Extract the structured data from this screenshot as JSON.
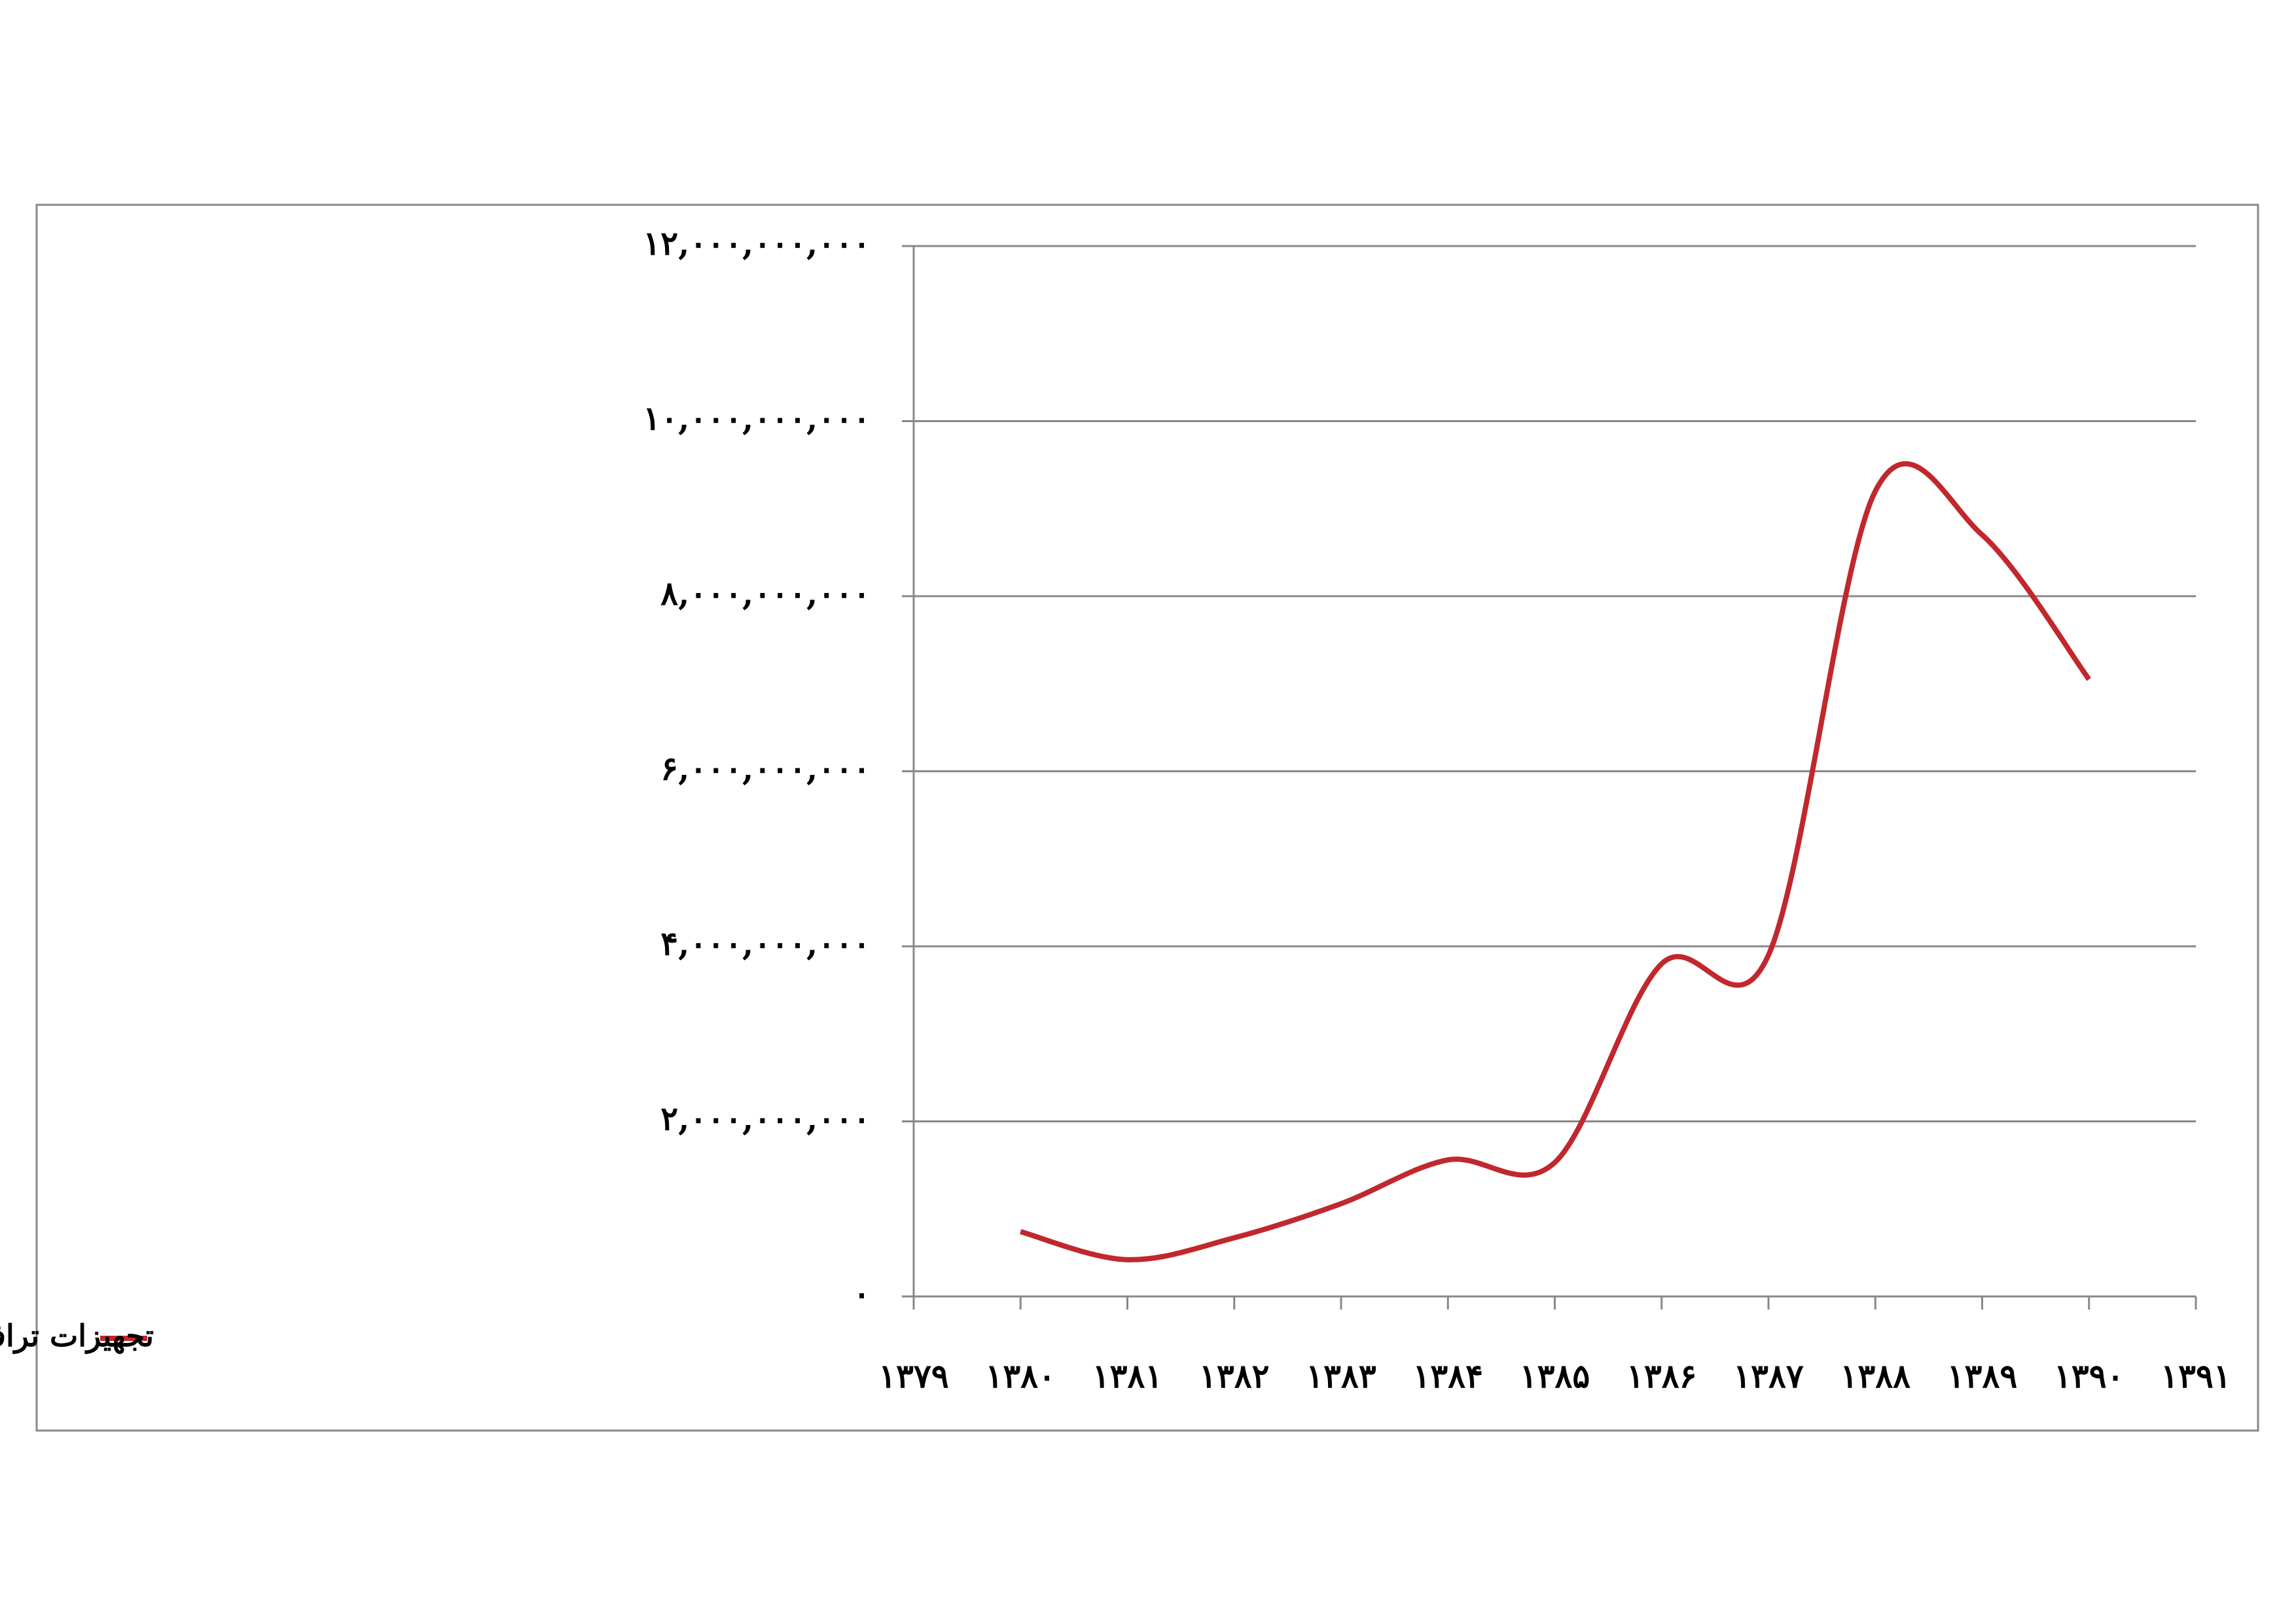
{
  "chart_data": {
    "type": "line",
    "x": [
      1380,
      1381,
      1382,
      1383,
      1384,
      1385,
      1386,
      1387,
      1388,
      1389,
      1390
    ],
    "series": [
      {
        "name": "تجهیزات ترافیکی و علائم عمودی و افقی",
        "color": "#c0282d",
        "values": [
          740000000,
          420000000,
          670000000,
          1060000000,
          1560000000,
          1530000000,
          3800000000,
          3900000000,
          9200000000,
          8700000000,
          7050000000
        ]
      }
    ],
    "xlim": [
      1379,
      1391
    ],
    "xticks": [
      {
        "value": 1379,
        "label": "۱۳۷۹"
      },
      {
        "value": 1380,
        "label": "۱۳۸۰"
      },
      {
        "value": 1381,
        "label": "۱۳۸۱"
      },
      {
        "value": 1382,
        "label": "۱۳۸۲"
      },
      {
        "value": 1383,
        "label": "۱۳۸۳"
      },
      {
        "value": 1384,
        "label": "۱۳۸۴"
      },
      {
        "value": 1385,
        "label": "۱۳۸۵"
      },
      {
        "value": 1386,
        "label": "۱۳۸۶"
      },
      {
        "value": 1387,
        "label": "۱۳۸۷"
      },
      {
        "value": 1388,
        "label": "۱۳۸۸"
      },
      {
        "value": 1389,
        "label": "۱۳۸۹"
      },
      {
        "value": 1390,
        "label": "۱۳۹۰"
      },
      {
        "value": 1391,
        "label": "۱۳۹۱"
      }
    ],
    "ylim": [
      0,
      12000000000
    ],
    "yticks": [
      {
        "value": 0,
        "label": "۰"
      },
      {
        "value": 2000000000,
        "label": "۲,۰۰۰,۰۰۰,۰۰۰"
      },
      {
        "value": 4000000000,
        "label": "۴,۰۰۰,۰۰۰,۰۰۰"
      },
      {
        "value": 6000000000,
        "label": "۶,۰۰۰,۰۰۰,۰۰۰"
      },
      {
        "value": 8000000000,
        "label": "۸,۰۰۰,۰۰۰,۰۰۰"
      },
      {
        "value": 10000000000,
        "label": "۱۰,۰۰۰,۰۰۰,۰۰۰"
      },
      {
        "value": 12000000000,
        "label": "۱۲,۰۰۰,۰۰۰,۰۰۰"
      }
    ],
    "grid": true,
    "smooth": true,
    "legend": "bottom-left"
  }
}
